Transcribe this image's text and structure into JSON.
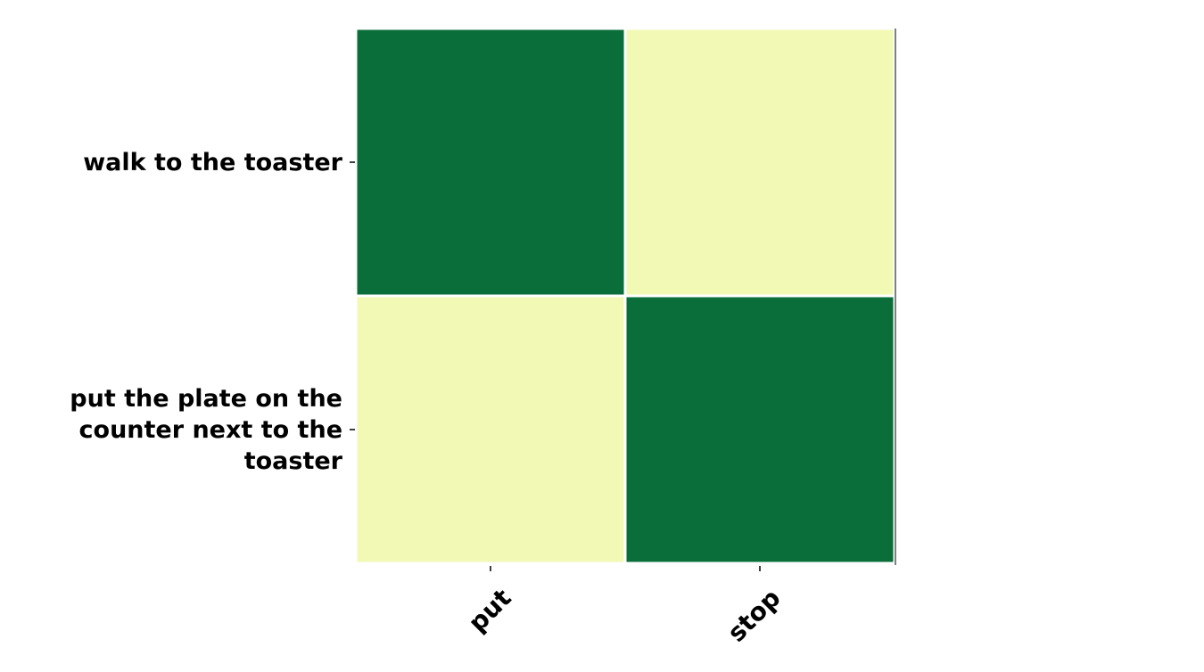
{
  "chart_data": {
    "type": "heatmap",
    "title": "",
    "xlabel": "",
    "ylabel": "",
    "x_categories": [
      "put",
      "stop"
    ],
    "y_categories": [
      [
        "walk to the toaster"
      ],
      [
        "put the plate on the",
        "counter next to the",
        "toaster"
      ]
    ],
    "values": [
      [
        1,
        0
      ],
      [
        0,
        1
      ]
    ],
    "value_range": [
      0,
      1
    ],
    "colormap": {
      "low": "#f2f9b5",
      "high": "#0a6e3a"
    },
    "cell_border_color": "#ffffff",
    "colorbar": false,
    "grid": false
  }
}
